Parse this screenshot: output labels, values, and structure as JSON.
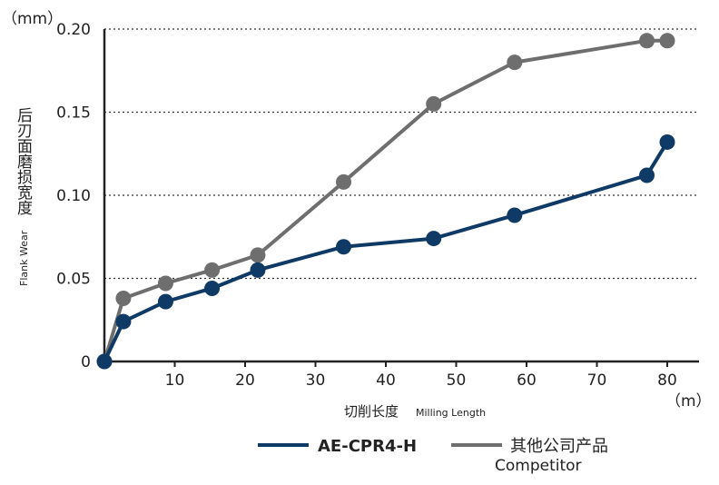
{
  "chart_data": {
    "type": "line",
    "y_unit": "（mm）",
    "x_unit": "（m）",
    "ylabel_cn": "后刃面磨损宽度",
    "ylabel_en": "Flank Wear",
    "xlabel_cn": "切削长度",
    "xlabel_en": "Milling Length",
    "xlim": [
      0,
      84
    ],
    "ylim": [
      0,
      0.2
    ],
    "x_ticks": [
      10,
      20,
      30,
      40,
      50,
      60,
      70,
      80
    ],
    "y_ticks": [
      0,
      0.05,
      0.1,
      0.15,
      0.2
    ],
    "x_tick_labels": [
      "10",
      "20",
      "30",
      "40",
      "50",
      "60",
      "70",
      "80"
    ],
    "y_tick_labels": [
      "0",
      "0.05",
      "0.10",
      "0.15",
      "0.20"
    ],
    "grid": "horizontal dotted",
    "series": [
      {
        "name": "AE-CPR4-H",
        "color": "#0f3a66",
        "x": [
          0,
          2.7,
          8.7,
          15.3,
          21.8,
          34.0,
          46.8,
          58.3,
          77.1,
          80.0
        ],
        "values": [
          0,
          0.024,
          0.036,
          0.044,
          0.055,
          0.069,
          0.074,
          0.088,
          0.112,
          0.132
        ]
      },
      {
        "name": "其他公司产品",
        "name_en": "Competitor",
        "color": "#6e6e6e",
        "x": [
          0,
          2.7,
          8.7,
          15.3,
          21.8,
          34.0,
          46.8,
          58.3,
          77.1,
          80.0
        ],
        "values": [
          0,
          0.038,
          0.047,
          0.055,
          0.064,
          0.108,
          0.155,
          0.18,
          0.193,
          0.193
        ]
      }
    ]
  }
}
